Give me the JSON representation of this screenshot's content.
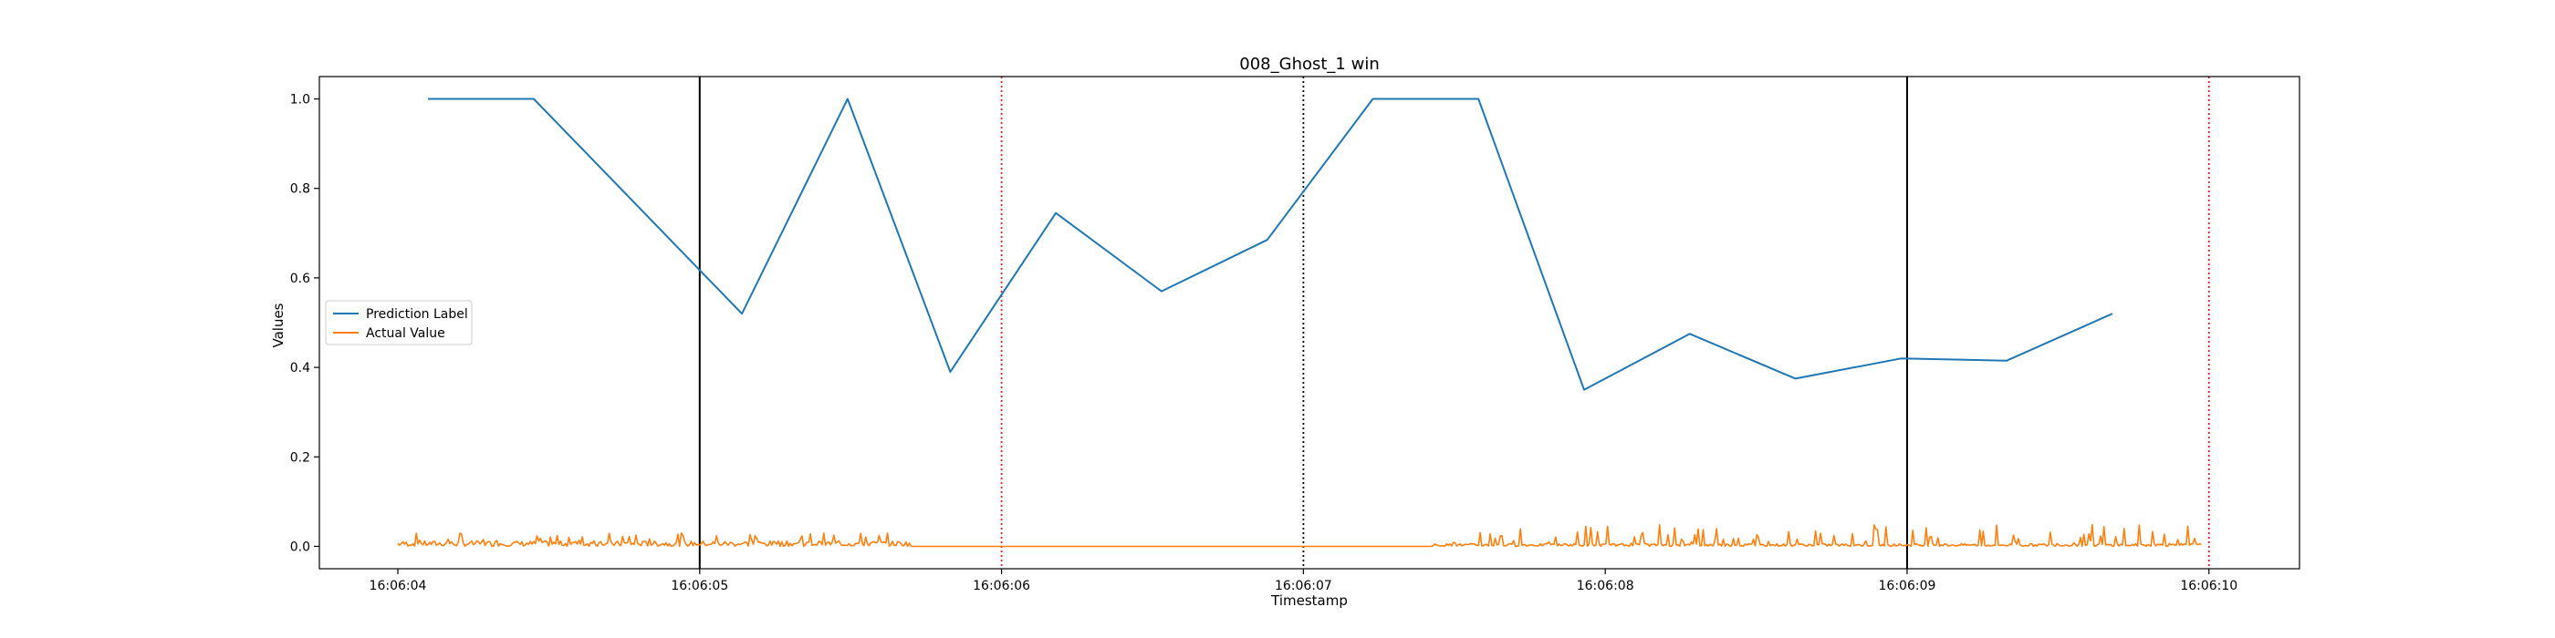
{
  "chart_data": {
    "type": "line",
    "title": "008_Ghost_1 win",
    "xlabel": "Timestamp",
    "ylabel": "Values",
    "x_tick_labels": [
      "16:06:04",
      "16:06:05",
      "16:06:06",
      "16:06:07",
      "16:06:08",
      "16:06:09",
      "16:06:10"
    ],
    "x_tick_values": [
      4,
      5,
      6,
      7,
      8,
      9,
      10
    ],
    "xlim": [
      3.74,
      10.3
    ],
    "ylim": [
      -0.05,
      1.05
    ],
    "y_tick_values": [
      0.0,
      0.2,
      0.4,
      0.6,
      0.8,
      1.0
    ],
    "y_tick_labels": [
      "0.0",
      "0.2",
      "0.4",
      "0.6",
      "0.8",
      "1.0"
    ],
    "legend_position": "center-left",
    "grid": false,
    "series": [
      {
        "name": "Prediction Label",
        "color": "#1f77b4",
        "x": [
          4.1,
          4.45,
          5.14,
          5.49,
          5.83,
          6.18,
          6.53,
          6.88,
          7.23,
          7.58,
          7.93,
          8.28,
          8.63,
          8.98,
          9.33,
          9.68
        ],
        "y": [
          1.0,
          1.0,
          0.52,
          1.0,
          0.39,
          0.745,
          0.57,
          0.685,
          1.0,
          1.0,
          0.35,
          0.475,
          0.375,
          0.42,
          0.415,
          0.52
        ]
      },
      {
        "name": "Actual Value",
        "color": "#ff7f0e",
        "x_range": [
          4.0,
          9.98
        ],
        "y_range": [
          0.0,
          0.05
        ],
        "note_segments": [
          {
            "from": 4.0,
            "to": 5.7,
            "level": 0.01,
            "spike": 0.02
          },
          {
            "from": 5.7,
            "to": 7.43,
            "level": 0.0,
            "spike": 0.0
          },
          {
            "from": 7.43,
            "to": 9.98,
            "level": 0.005,
            "spike": 0.045
          }
        ]
      }
    ],
    "vertical_lines": [
      {
        "x": 5.0,
        "style": "solid",
        "color": "#000000"
      },
      {
        "x": 9.0,
        "style": "solid",
        "color": "#000000"
      },
      {
        "x": 7.0,
        "style": "dotted",
        "color": "#000000"
      },
      {
        "x": 6.0,
        "style": "dotted",
        "color": "#d62728"
      },
      {
        "x": 10.0,
        "style": "dotted",
        "color": "#d62728"
      }
    ]
  }
}
